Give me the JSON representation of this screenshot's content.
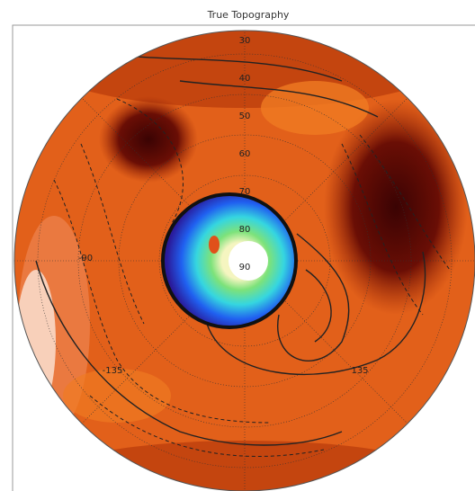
{
  "header": {
    "title": "True Topography"
  },
  "map": {
    "latitude_labels": [
      "30",
      "40",
      "50",
      "60",
      "70",
      "80",
      "90"
    ],
    "longitude_labels": [
      "-90",
      "-135",
      "135"
    ]
  }
}
